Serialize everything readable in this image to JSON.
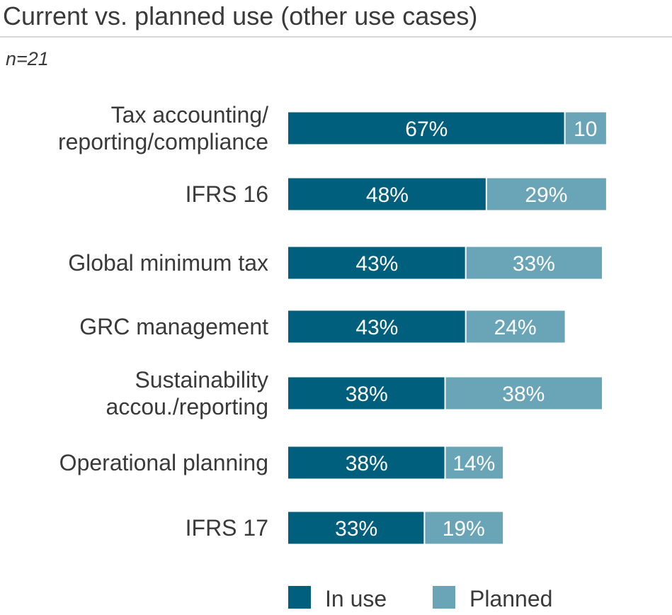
{
  "header": {
    "title": "Current vs. planned use (other use cases)",
    "subtitle": "n=21"
  },
  "chart_data": {
    "type": "bar",
    "orientation": "horizontal",
    "stacked": true,
    "categories": [
      [
        "Tax accounting/",
        "reporting/compliance"
      ],
      [
        "IFRS 16"
      ],
      [
        "Global minimum tax"
      ],
      [
        "GRC management"
      ],
      [
        "Sustainability",
        "accou./reporting"
      ],
      [
        "Operational planning"
      ],
      [
        "IFRS 17"
      ]
    ],
    "series": [
      {
        "name": "In use",
        "color": "#005f7c",
        "values": [
          67,
          48,
          43,
          43,
          38,
          38,
          33
        ],
        "labels": [
          "67%",
          "48%",
          "43%",
          "43%",
          "38%",
          "38%",
          "33%"
        ]
      },
      {
        "name": "Planned",
        "color": "#69a5b6",
        "values": [
          10,
          29,
          33,
          24,
          38,
          14,
          19
        ],
        "labels": [
          "10",
          "29%",
          "33%",
          "24%",
          "38%",
          "14%",
          "19%"
        ]
      }
    ],
    "xlim": [
      0,
      100
    ],
    "grid": false,
    "legend": "bottom"
  }
}
